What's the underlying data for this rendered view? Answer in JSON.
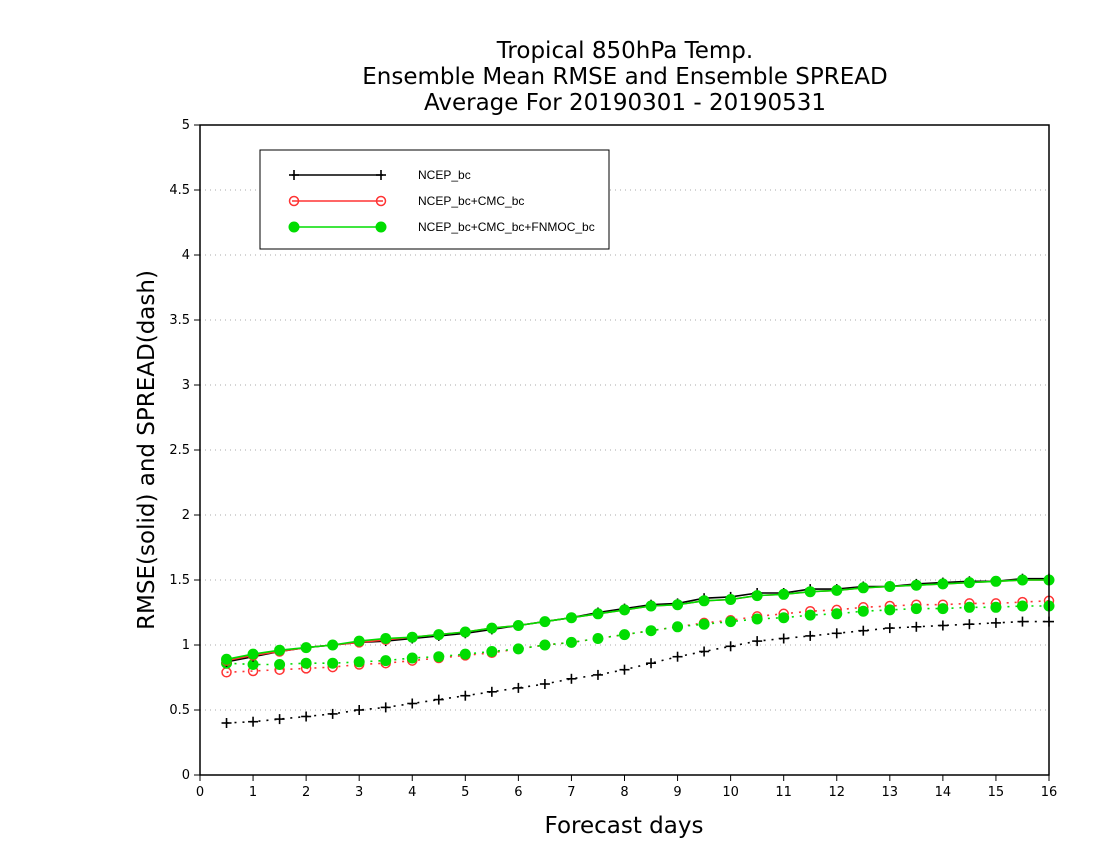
{
  "chart_data": {
    "type": "line",
    "title_lines": [
      "Tropical 850hPa Temp.",
      "Ensemble Mean RMSE and Ensemble SPREAD",
      "Average For 20190301 - 20190531"
    ],
    "xlabel": "Forecast days",
    "ylabel": "RMSE(solid) and SPREAD(dash)",
    "xlim": [
      0,
      16
    ],
    "ylim": [
      0,
      5
    ],
    "x_ticks": [
      "0",
      "1",
      "2",
      "3",
      "4",
      "5",
      "6",
      "7",
      "8",
      "9",
      "10",
      "11",
      "12",
      "13",
      "14",
      "15",
      "16"
    ],
    "y_ticks": [
      "0",
      "0.5",
      "1",
      "1.5",
      "2",
      "2.5",
      "3",
      "3.5",
      "4",
      "4.5",
      "5"
    ],
    "grid": "horizontal dotted",
    "legend_position": "top-left",
    "x": [
      0.5,
      1,
      1.5,
      2,
      2.5,
      3,
      3.5,
      4,
      4.5,
      5,
      5.5,
      6,
      6.5,
      7,
      7.5,
      8,
      8.5,
      9,
      9.5,
      10,
      10.5,
      11,
      11.5,
      12,
      12.5,
      13,
      13.5,
      14,
      14.5,
      15,
      15.5,
      16
    ],
    "series": [
      {
        "name": "NCEP_bc",
        "color": "#000000",
        "marker": "plus",
        "rmse": [
          0.87,
          0.91,
          0.95,
          0.98,
          1.0,
          1.02,
          1.03,
          1.05,
          1.07,
          1.09,
          1.12,
          1.15,
          1.18,
          1.21,
          1.25,
          1.28,
          1.31,
          1.32,
          1.36,
          1.37,
          1.4,
          1.4,
          1.43,
          1.43,
          1.45,
          1.45,
          1.47,
          1.48,
          1.49,
          1.49,
          1.51,
          1.51
        ],
        "spread": [
          0.4,
          0.41,
          0.43,
          0.45,
          0.47,
          0.5,
          0.52,
          0.55,
          0.58,
          0.61,
          0.64,
          0.67,
          0.7,
          0.74,
          0.77,
          0.81,
          0.86,
          0.91,
          0.95,
          0.99,
          1.03,
          1.05,
          1.07,
          1.09,
          1.11,
          1.13,
          1.14,
          1.15,
          1.16,
          1.17,
          1.18,
          1.18
        ]
      },
      {
        "name": "NCEP_bc+CMC_bc",
        "color": "#ff3333",
        "marker": "open-circle",
        "rmse": [
          0.88,
          0.92,
          0.95,
          0.98,
          1.0,
          1.02,
          1.04,
          1.06,
          1.08,
          1.1,
          1.13,
          1.15,
          1.18,
          1.21,
          1.24,
          1.27,
          1.3,
          1.31,
          1.34,
          1.35,
          1.38,
          1.39,
          1.41,
          1.42,
          1.44,
          1.45,
          1.46,
          1.47,
          1.48,
          1.49,
          1.5,
          1.5
        ],
        "spread": [
          0.79,
          0.8,
          0.81,
          0.82,
          0.83,
          0.85,
          0.86,
          0.88,
          0.9,
          0.92,
          0.94,
          0.97,
          1.0,
          1.02,
          1.05,
          1.08,
          1.11,
          1.14,
          1.17,
          1.19,
          1.22,
          1.24,
          1.26,
          1.27,
          1.29,
          1.3,
          1.31,
          1.31,
          1.32,
          1.32,
          1.33,
          1.34
        ]
      },
      {
        "name": "NCEP_bc+CMC_bc+FNMOC_bc",
        "color": "#00dd00",
        "marker": "filled-circle",
        "rmse": [
          0.89,
          0.93,
          0.96,
          0.98,
          1.0,
          1.03,
          1.05,
          1.06,
          1.08,
          1.1,
          1.13,
          1.15,
          1.18,
          1.21,
          1.24,
          1.27,
          1.3,
          1.31,
          1.34,
          1.35,
          1.38,
          1.39,
          1.41,
          1.42,
          1.44,
          1.45,
          1.46,
          1.47,
          1.48,
          1.49,
          1.5,
          1.5
        ],
        "spread": [
          0.86,
          0.85,
          0.85,
          0.86,
          0.86,
          0.87,
          0.88,
          0.9,
          0.91,
          0.93,
          0.95,
          0.97,
          1.0,
          1.02,
          1.05,
          1.08,
          1.11,
          1.14,
          1.16,
          1.18,
          1.2,
          1.21,
          1.23,
          1.24,
          1.26,
          1.27,
          1.28,
          1.28,
          1.29,
          1.29,
          1.3,
          1.3
        ]
      }
    ]
  }
}
